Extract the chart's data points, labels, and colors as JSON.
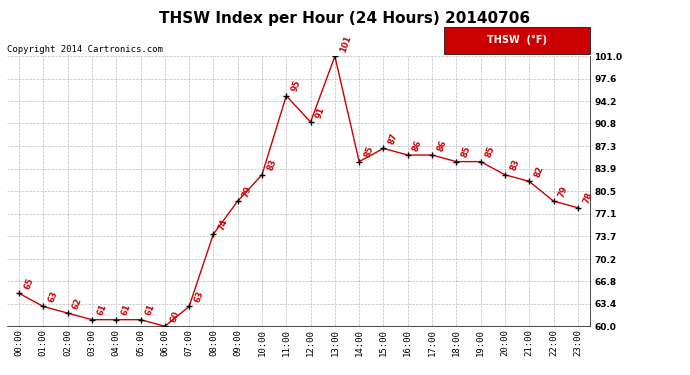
{
  "title": "THSW Index per Hour (24 Hours) 20140706",
  "copyright": "Copyright 2014 Cartronics.com",
  "legend_label": "THSW  (°F)",
  "hours": [
    "00:00",
    "01:00",
    "02:00",
    "03:00",
    "04:00",
    "05:00",
    "06:00",
    "07:00",
    "08:00",
    "09:00",
    "10:00",
    "11:00",
    "12:00",
    "13:00",
    "14:00",
    "15:00",
    "16:00",
    "17:00",
    "18:00",
    "19:00",
    "20:00",
    "21:00",
    "22:00",
    "23:00"
  ],
  "values": [
    65,
    63,
    62,
    61,
    61,
    61,
    60,
    63,
    74,
    79,
    83,
    95,
    91,
    101,
    85,
    87,
    86,
    86,
    85,
    85,
    83,
    82,
    79,
    78
  ],
  "line_color": "#cc0000",
  "marker_color": "#000000",
  "label_color": "#cc0000",
  "background_color": "#ffffff",
  "grid_color": "#bbbbbb",
  "ylim": [
    60.0,
    101.0
  ],
  "yticks": [
    60.0,
    63.4,
    66.8,
    70.2,
    73.7,
    77.1,
    80.5,
    83.9,
    87.3,
    90.8,
    94.2,
    97.6,
    101.0
  ],
  "title_fontsize": 11,
  "label_fontsize": 6,
  "tick_fontsize": 6.5,
  "copyright_fontsize": 6.5,
  "legend_fontsize": 7
}
